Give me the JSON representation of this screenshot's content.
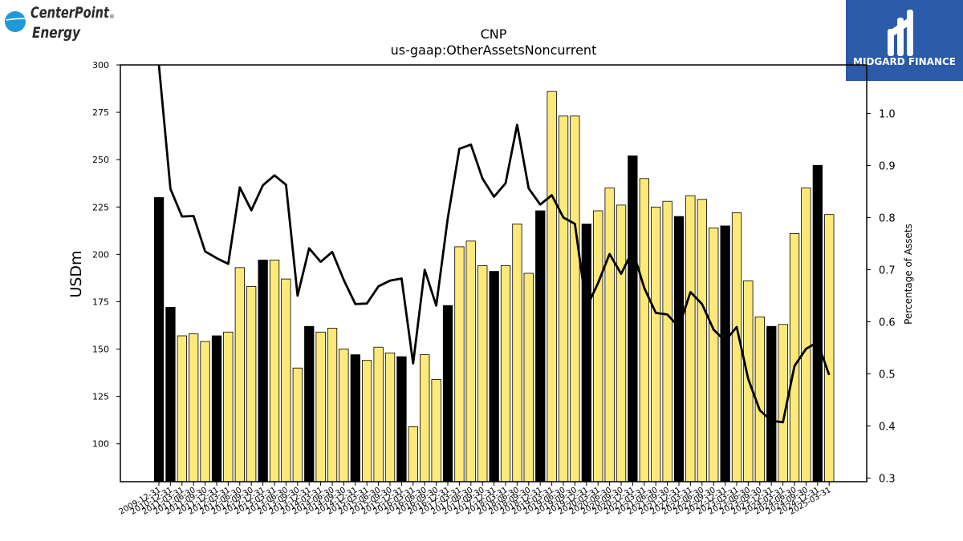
{
  "branding": {
    "left_logo_line1": "CenterPoint",
    "left_logo_line2": "Energy",
    "left_logo_mark": "®",
    "left_logo_color": "#1f9ad6",
    "right_logo_text": "MIDGARD FINANCE",
    "right_logo_bg": "#2a5aa8"
  },
  "chart_data": {
    "type": "bar",
    "title": "CNP",
    "subtitle": "us-gaap:OtherAssetsNoncurrent",
    "ylabel": "USDm",
    "y2label": "Percentage of Assets",
    "ylim": [
      80,
      300
    ],
    "yticks": [
      100,
      125,
      150,
      175,
      200,
      225,
      250,
      275,
      300
    ],
    "y2lim": [
      0.293,
      1.093
    ],
    "y2ticks": [
      "0.3",
      "0.4",
      "0.5",
      "0.6",
      "0.7",
      "0.8",
      "0.9",
      "1.0"
    ],
    "bar_colors": {
      "annual": "#000000",
      "quarter": "#fde97a"
    },
    "line_color": "#000000",
    "categories": [
      "2009-12-31",
      "2010-12-31",
      "2011-03-31",
      "2011-06-30",
      "2011-09-30",
      "2011-12-31",
      "2012-03-31",
      "2012-06-30",
      "2012-09-30",
      "2012-12-31",
      "2013-03-31",
      "2013-06-30",
      "2013-09-30",
      "2013-12-31",
      "2014-03-31",
      "2014-06-30",
      "2014-09-30",
      "2014-12-31",
      "2015-03-31",
      "2015-06-30",
      "2015-09-30",
      "2015-12-31",
      "2016-03-31",
      "2016-06-30",
      "2016-09-30",
      "2016-12-31",
      "2017-03-31",
      "2017-06-30",
      "2017-09-30",
      "2017-12-31",
      "2018-03-31",
      "2018-06-30",
      "2018-09-30",
      "2018-12-31",
      "2019-03-31",
      "2019-06-30",
      "2019-09-30",
      "2019-12-31",
      "2020-03-31",
      "2020-06-30",
      "2020-09-30",
      "2020-12-31",
      "2021-03-31",
      "2021-06-30",
      "2021-09-30",
      "2021-12-31",
      "2022-03-31",
      "2022-06-30",
      "2022-09-30",
      "2022-12-31",
      "2023-03-31",
      "2023-06-30",
      "2023-09-30",
      "2023-12-31",
      "2024-03-31",
      "2024-06-30",
      "2024-09-30",
      "2024-12-31",
      "2025-03-31"
    ],
    "annual": [
      true,
      true,
      false,
      false,
      false,
      true,
      false,
      false,
      false,
      true,
      false,
      false,
      false,
      true,
      false,
      false,
      false,
      true,
      false,
      false,
      false,
      true,
      false,
      false,
      false,
      true,
      false,
      false,
      false,
      true,
      false,
      false,
      false,
      true,
      false,
      false,
      false,
      true,
      false,
      false,
      false,
      true,
      false,
      false,
      false,
      true,
      false,
      false,
      false,
      true,
      false,
      false,
      false,
      true,
      false,
      false,
      false,
      true,
      false
    ],
    "values": [
      230,
      172,
      157,
      158,
      154,
      157,
      159,
      193,
      183,
      197,
      197,
      187,
      140,
      162,
      159,
      161,
      150,
      147,
      144,
      151,
      148,
      146,
      109,
      147,
      134,
      173,
      204,
      207,
      194,
      191,
      194,
      216,
      190,
      223,
      286,
      273,
      273,
      216,
      223,
      235,
      226,
      252,
      240,
      225,
      228,
      220,
      231,
      229,
      214,
      215,
      222,
      186,
      167,
      162,
      163,
      211,
      235,
      247,
      221
    ],
    "pct_of_assets": [
      1.1,
      0.855,
      0.802,
      0.803,
      0.735,
      0.722,
      0.711,
      0.858,
      0.814,
      0.862,
      0.881,
      0.863,
      0.65,
      0.741,
      0.715,
      0.734,
      0.68,
      0.634,
      0.635,
      0.668,
      0.679,
      0.683,
      0.52,
      0.7,
      0.631,
      0.799,
      0.932,
      0.94,
      0.875,
      0.84,
      0.866,
      0.978,
      0.856,
      0.825,
      0.843,
      0.8,
      0.788,
      0.627,
      0.674,
      0.73,
      0.692,
      0.737,
      0.665,
      0.617,
      0.614,
      0.59,
      0.657,
      0.634,
      0.585,
      0.563,
      0.59,
      0.49,
      0.43,
      0.41,
      0.407,
      0.515,
      0.548,
      0.561,
      0.498
    ]
  }
}
